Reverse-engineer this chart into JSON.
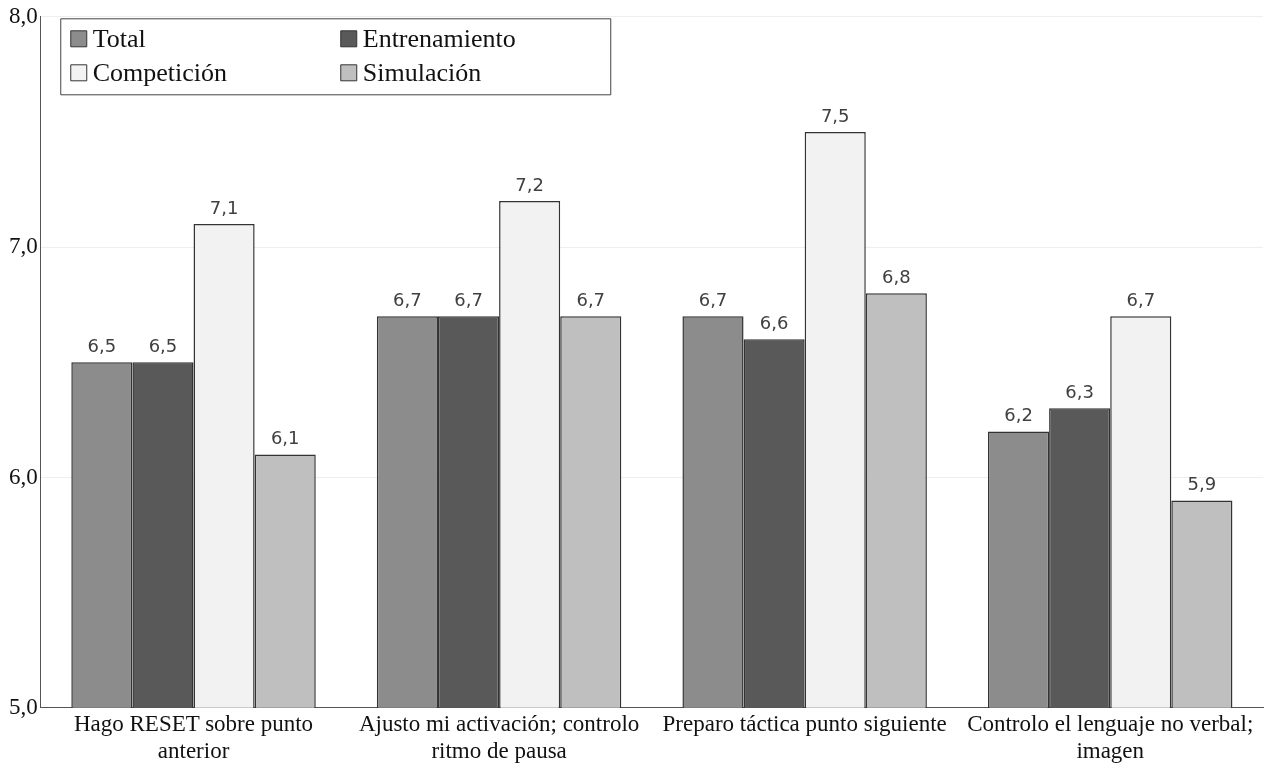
{
  "chart_data": {
    "type": "bar",
    "categories": [
      "Hago RESET sobre punto anterior",
      "Ajusto mi activación; controlo ritmo de pausa",
      "Preparo táctica punto siguiente",
      "Controlo el lenguaje no verbal; imagen"
    ],
    "series": [
      {
        "name": "Total",
        "color": "#8c8c8c",
        "values": [
          6.5,
          6.7,
          6.7,
          6.2
        ],
        "value_labels": [
          "6,5",
          "6,7",
          "6,7",
          "6,2"
        ]
      },
      {
        "name": "Entrenamiento",
        "color": "#595959",
        "values": [
          6.5,
          6.7,
          6.6,
          6.3
        ],
        "value_labels": [
          "6,5",
          "6,7",
          "6,6",
          "6,3"
        ]
      },
      {
        "name": "Competición",
        "color": "#f2f2f2",
        "values": [
          7.1,
          7.2,
          7.5,
          6.7
        ],
        "value_labels": [
          "7,1",
          "7,2",
          "7,5",
          "6,7"
        ]
      },
      {
        "name": "Simulación",
        "color": "#bfbfbf",
        "values": [
          6.1,
          6.7,
          6.8,
          5.9
        ],
        "value_labels": [
          "6,1",
          "6,7",
          "6,8",
          "5,9"
        ]
      }
    ],
    "ylim": [
      5,
      8
    ],
    "yticks": [
      {
        "value": 5,
        "label": "5,0"
      },
      {
        "value": 6,
        "label": "6,0"
      },
      {
        "value": 7,
        "label": "7,0"
      },
      {
        "value": 8,
        "label": "8,0"
      }
    ],
    "grid": "y",
    "legend": "top left"
  }
}
